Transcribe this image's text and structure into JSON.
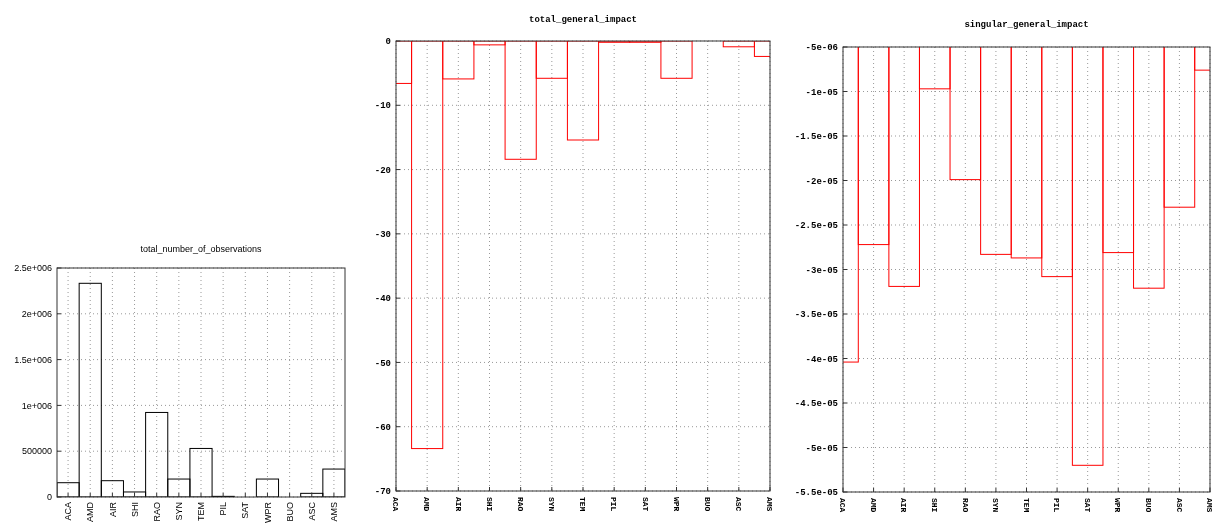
{
  "chart_data": [
    {
      "type": "bar",
      "title": "total_number_of_observations",
      "categories": [
        "ACA",
        "AMD",
        "AIR",
        "SHI",
        "RAO",
        "SYN",
        "TEM",
        "PIL",
        "SAT",
        "WPR",
        "BUO",
        "ASC",
        "AMS"
      ],
      "values": [
        156000,
        2333000,
        178000,
        55000,
        923000,
        196000,
        530000,
        7000,
        0,
        196000,
        0,
        40000,
        305000
      ],
      "color": "#000000",
      "ylim": [
        0,
        2500000
      ],
      "yticks": [
        0,
        500000,
        {
          "value": 1000000,
          "label": "1e+006"
        },
        {
          "value": 1500000,
          "label": "1.5e+006"
        },
        {
          "value": 2000000,
          "label": "2e+006"
        },
        {
          "value": 2500000,
          "label": "2.5e+006"
        }
      ],
      "grid": true
    },
    {
      "type": "bar",
      "title": "total_general_impact",
      "categories": [
        "ACA",
        "AMD",
        "AIR",
        "SHI",
        "RAO",
        "SYN",
        "TEM",
        "PIL",
        "SAT",
        "WPR",
        "BUO",
        "ASC",
        "AMS"
      ],
      "values": [
        -6.6,
        -63.4,
        -5.9,
        -0.6,
        -18.4,
        -5.8,
        -15.4,
        -0.2,
        -0.2,
        -5.8,
        0,
        -0.9,
        -2.4
      ],
      "color": "#ff0000",
      "ylim": [
        -70,
        0
      ],
      "yticks": [
        -70,
        -60,
        -50,
        -40,
        -30,
        -20,
        -10,
        0
      ],
      "grid": true
    },
    {
      "type": "bar",
      "title": "singular_general_impact",
      "categories": [
        "ACA",
        "AMD",
        "AIR",
        "SHI",
        "RAO",
        "SYN",
        "TEM",
        "PIL",
        "SAT",
        "WPR",
        "BUO",
        "ASC",
        "AMS"
      ],
      "values": [
        -4.04e-05,
        -2.72e-05,
        -3.19e-05,
        -9.7e-06,
        -1.99e-05,
        -2.83e-05,
        -2.87e-05,
        -3.08e-05,
        -5.2e-05,
        -2.81e-05,
        -3.21e-05,
        -2.3e-05,
        -7.6e-06
      ],
      "color": "#ff0000",
      "ylim": [
        -5.5e-05,
        -5e-06
      ],
      "yticks": [
        {
          "value": -5.5e-05,
          "label": "-5.5e-05"
        },
        {
          "value": -5e-05,
          "label": "-5e-05"
        },
        {
          "value": -4.5e-05,
          "label": "-4.5e-05"
        },
        {
          "value": -4e-05,
          "label": "-4e-05"
        },
        {
          "value": -3.5e-05,
          "label": "-3.5e-05"
        },
        {
          "value": -3e-05,
          "label": "-3e-05"
        },
        {
          "value": -2.5e-05,
          "label": "-2.5e-05"
        },
        {
          "value": -2e-05,
          "label": "-2e-05"
        },
        {
          "value": -1.5e-05,
          "label": "-1.5e-05"
        },
        {
          "value": -1e-05,
          "label": "-1e-05"
        },
        {
          "value": -5e-06,
          "label": "-5e-06"
        }
      ],
      "grid": true
    }
  ]
}
